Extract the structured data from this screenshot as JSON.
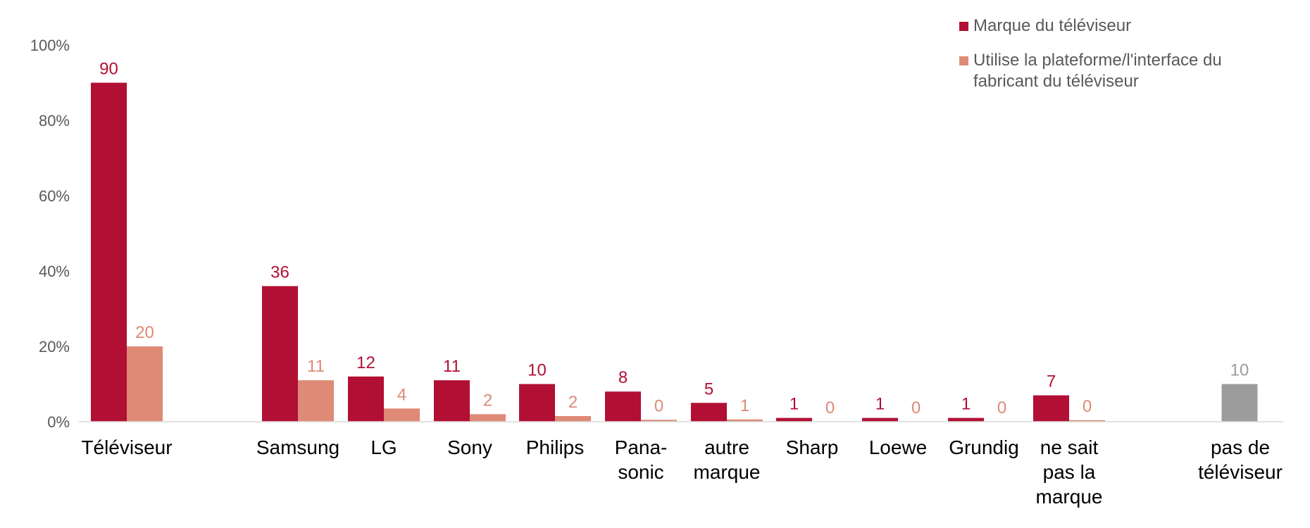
{
  "chart_data": {
    "type": "bar",
    "ylim": [
      0,
      100
    ],
    "yticks": [
      "0%",
      "20%",
      "40%",
      "60%",
      "80%",
      "100%"
    ],
    "grid": false,
    "legend_position": "top-right",
    "categories": [
      [
        "Téléviseur"
      ],
      [
        "Samsung"
      ],
      [
        "LG"
      ],
      [
        "Sony"
      ],
      [
        "Philips"
      ],
      [
        "Pana-",
        "sonic"
      ],
      [
        "autre",
        "marque"
      ],
      [
        "Sharp"
      ],
      [
        "Loewe"
      ],
      [
        "Grundig"
      ],
      [
        "ne sait",
        "pas la",
        "marque"
      ],
      [
        "pas de",
        "téléviseur"
      ]
    ],
    "series": [
      {
        "name": "Marque du téléviseur",
        "color": "#B20F34",
        "values": [
          90,
          36,
          12,
          11,
          10,
          8,
          5,
          1,
          1,
          1,
          7,
          null
        ],
        "labels": [
          "90",
          "36",
          "12",
          "11",
          "10",
          "8",
          "5",
          "1",
          "1",
          "1",
          "7",
          null
        ]
      },
      {
        "name": "Utilise la plateforme/l'interface du fabricant du téléviseur",
        "legend_lines": [
          "Utilise la plateforme/l'interface du",
          "fabricant du téléviseur"
        ],
        "color": "#DE8A77",
        "values": [
          20,
          11,
          3.5,
          2,
          1.5,
          0.5,
          0.6,
          0,
          0,
          0,
          0.4,
          null
        ],
        "labels": [
          "20",
          "11",
          "4",
          "2",
          "2",
          "0",
          "1",
          "0",
          "0",
          "0",
          "0",
          null
        ]
      },
      {
        "name": "pas de téléviseur",
        "color": "#9C9C9C",
        "values": [
          null,
          null,
          null,
          null,
          null,
          null,
          null,
          null,
          null,
          null,
          null,
          10
        ],
        "labels": [
          null,
          null,
          null,
          null,
          null,
          null,
          null,
          null,
          null,
          null,
          null,
          "10"
        ]
      }
    ]
  }
}
